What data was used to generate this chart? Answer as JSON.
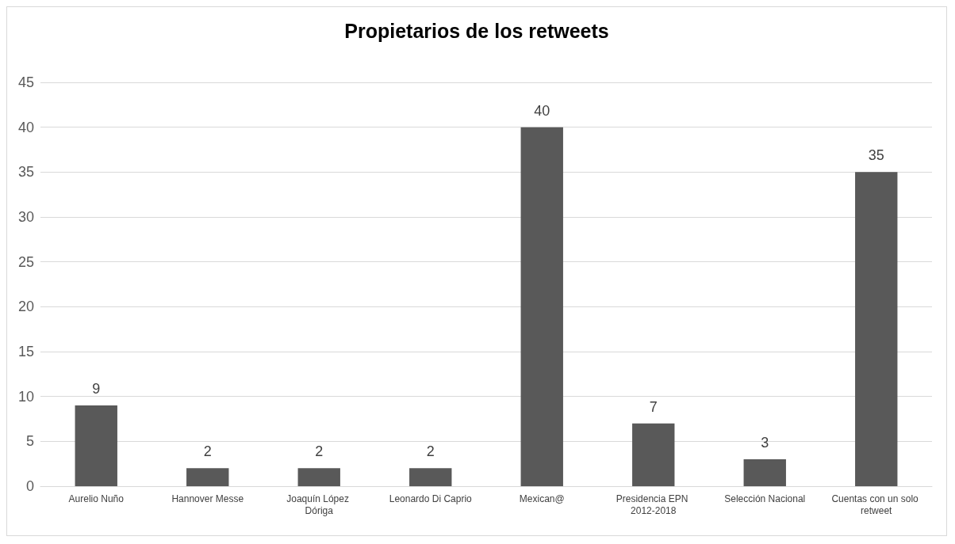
{
  "chart_data": {
    "type": "bar",
    "title": "Propietarios de los retweets",
    "categories": [
      "Aurelio Nuño",
      "Hannover Messe",
      "Joaquín López Dóriga",
      "Leonardo Di Caprio",
      "Mexican@",
      "Presidencia EPN 2012-2018",
      "Selección Nacional",
      "Cuentas con un solo retweet"
    ],
    "values": [
      9,
      2,
      2,
      2,
      40,
      7,
      3,
      35
    ],
    "color": "#595959",
    "ylim": [
      0,
      45
    ],
    "yticks": [
      0,
      5,
      10,
      15,
      20,
      25,
      30,
      35,
      40,
      45
    ],
    "grid": "y",
    "data_labels": true
  }
}
